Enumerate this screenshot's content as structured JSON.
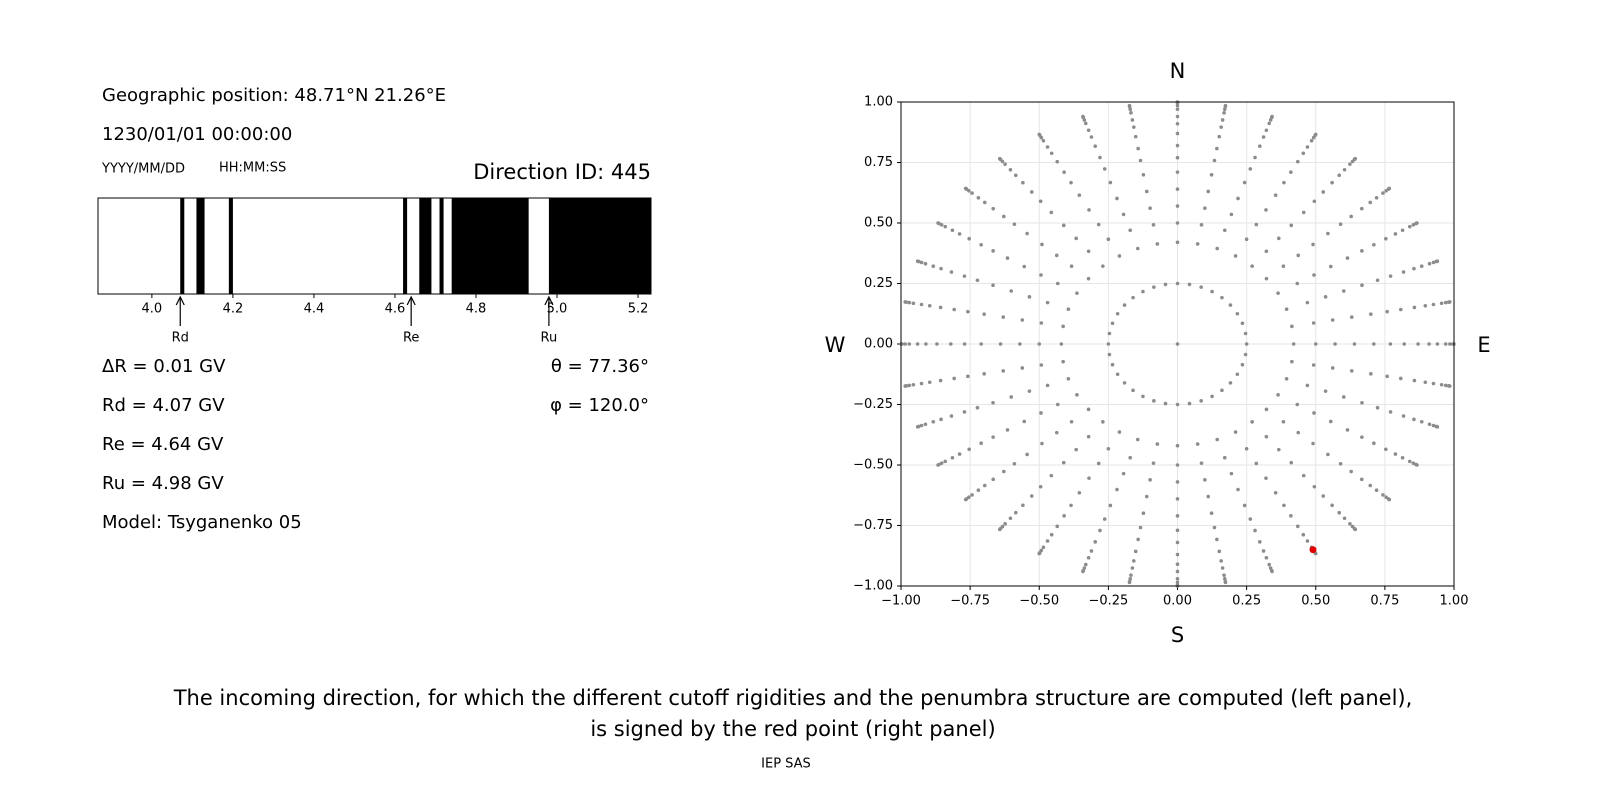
{
  "info": {
    "position": "Geographic position: 48.71°N 21.26°E",
    "datetime": "1230/01/01 00:00:00",
    "date_format": "YYYY/MM/DD",
    "time_format": "HH:MM:SS",
    "direction": "Direction ID: 445",
    "lines_left": [
      "ΔR = 0.01 GV",
      "Rd = 4.07 GV",
      "Re = 4.64 GV",
      "Ru = 4.98 GV",
      "Model: Tsyganenko 05"
    ],
    "lines_right": [
      "θ = 77.36°",
      "φ = 120.0°"
    ]
  },
  "chart_data": [
    {
      "type": "penumbra",
      "xlim": [
        3.867,
        5.232
      ],
      "xticks": [
        {
          "value": 4.0,
          "label": "4.0"
        },
        4.2,
        4.4,
        4.6,
        4.8,
        {
          "value": 5.0,
          "label": "5.0"
        },
        5.2
      ],
      "color": "#000000",
      "forbidden": [
        [
          4.07,
          4.08
        ],
        [
          4.11,
          4.13
        ],
        [
          4.19,
          4.2
        ],
        [
          4.62,
          4.63
        ],
        [
          4.66,
          4.69
        ],
        [
          4.71,
          4.72
        ],
        [
          4.74,
          4.93
        ],
        [
          4.98,
          5.232
        ]
      ],
      "markers": [
        {
          "label": "Rd",
          "value": 4.07
        },
        {
          "label": "Re",
          "value": 4.64
        },
        {
          "label": "Ru",
          "value": 4.98
        }
      ]
    },
    {
      "type": "direction-grid",
      "xlim": [
        -1,
        1
      ],
      "ylim": [
        -1,
        1
      ],
      "xticks": [
        {
          "value": -1,
          "label": "−1.00"
        },
        {
          "value": -0.75,
          "label": "−0.75"
        },
        {
          "value": -0.5,
          "label": "−0.50"
        },
        {
          "value": -0.25,
          "label": "−0.25"
        },
        {
          "value": 0,
          "label": "0.00"
        },
        0.25,
        {
          "value": 0.5,
          "label": "0.50"
        },
        0.75,
        {
          "value": 1,
          "label": "1.00"
        }
      ],
      "yticks": [
        {
          "value": -1,
          "label": "−1.00"
        },
        {
          "value": -0.75,
          "label": "−0.75"
        },
        {
          "value": -0.5,
          "label": "−0.50"
        },
        {
          "value": -0.25,
          "label": "−0.25"
        },
        {
          "value": 0,
          "label": "0.00"
        },
        0.25,
        {
          "value": 0.5,
          "label": "0.50"
        },
        0.75,
        {
          "value": 1,
          "label": "1.00"
        }
      ],
      "grid": true,
      "compass": {
        "north": "N",
        "south": "S",
        "east": "E",
        "west": "W"
      },
      "color": "#8c8c8c",
      "azimuths": [
        0,
        10,
        20,
        30,
        40,
        50,
        60,
        70,
        80,
        90,
        100,
        110,
        120,
        130,
        140,
        150,
        160,
        170,
        180,
        190,
        200,
        210,
        220,
        230,
        240,
        250,
        260,
        270,
        280,
        290,
        300,
        310,
        320,
        330,
        340,
        350
      ],
      "radii": [
        0.25,
        0.42,
        0.5,
        0.57,
        0.64,
        0.71,
        0.77,
        0.82,
        0.87,
        0.91,
        0.94,
        0.97,
        0.985,
        0.996,
        1.0
      ],
      "center": {
        "x": 0,
        "y": 0
      },
      "highlight": {
        "x": 0.49,
        "y": -0.85,
        "color": "#e00000"
      }
    }
  ],
  "caption": [
    "The incoming direction, for which the different cutoff rigidities and the penumbra structure are computed (left panel),",
    "is signed by the red point (right panel)"
  ],
  "footer": "IEP SAS"
}
